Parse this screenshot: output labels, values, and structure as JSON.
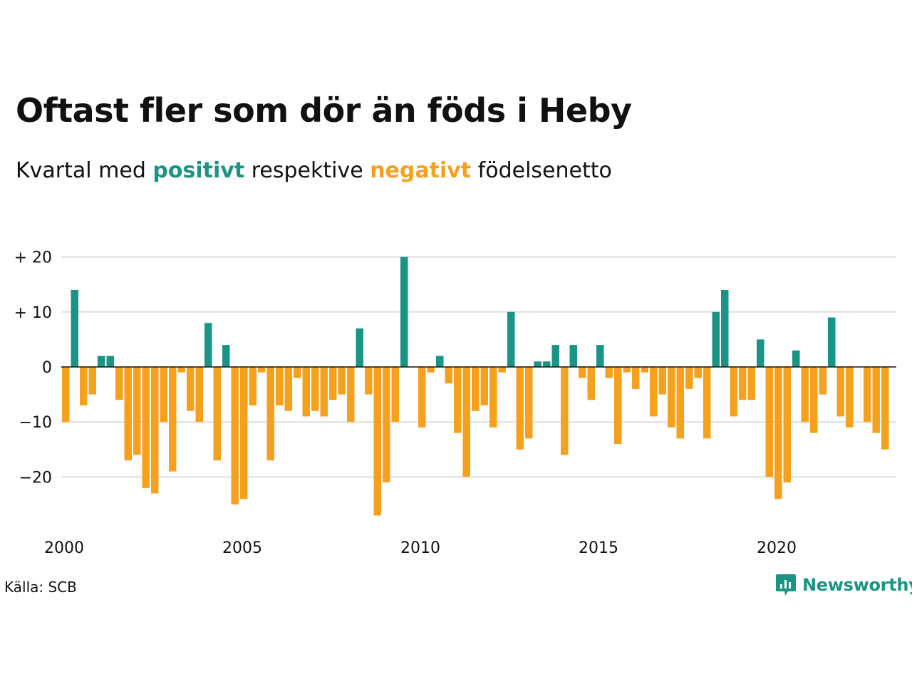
{
  "title": "Oftast fler som dör än föds i Heby",
  "subtitle": {
    "prefix": "Kvartal med ",
    "positive": "positivt",
    "middle": " respektive ",
    "negative": "negativt",
    "suffix": " födelsenetto"
  },
  "source": "Källa: SCB",
  "brand": "Newsworthy",
  "colors": {
    "positive": "#1a9585",
    "negative": "#f6a11e",
    "grid": "#dddddd",
    "axis": "#111111"
  },
  "chart_data": {
    "type": "bar",
    "x_start": "2000 Q1",
    "x_ticks": [
      "2000",
      "2005",
      "2010",
      "2015",
      "2020"
    ],
    "y_ticks": [
      {
        "value": 20,
        "label": "+ 20"
      },
      {
        "value": 10,
        "label": "+ 10"
      },
      {
        "value": 0,
        "label": "0"
      },
      {
        "value": -10,
        "label": "−10"
      },
      {
        "value": -20,
        "label": "−20"
      }
    ],
    "ylim": [
      -28,
      20
    ],
    "grid": true,
    "values": [
      -10,
      14,
      -7,
      -5,
      2,
      2,
      -6,
      -17,
      -16,
      -22,
      -23,
      -10,
      -19,
      -1,
      -8,
      -10,
      8,
      -17,
      4,
      -25,
      -24,
      -7,
      -1,
      -17,
      -7,
      -8,
      -2,
      -9,
      -8,
      -9,
      -6,
      -5,
      -10,
      7,
      -5,
      -27,
      -21,
      -10,
      20,
      0,
      -11,
      -1,
      2,
      -3,
      -12,
      -20,
      -8,
      -7,
      -11,
      -1,
      10,
      -15,
      -13,
      1,
      1,
      4,
      -16,
      4,
      -2,
      -6,
      4,
      -2,
      -14,
      -1,
      -4,
      -1,
      -9,
      -5,
      -11,
      -13,
      -4,
      -2,
      -13,
      10,
      14,
      -9,
      -6,
      -6,
      5,
      -20,
      -24,
      -21,
      3,
      -10,
      -12,
      -5,
      9,
      -9,
      -11,
      0,
      -10,
      -12,
      -15
    ]
  }
}
